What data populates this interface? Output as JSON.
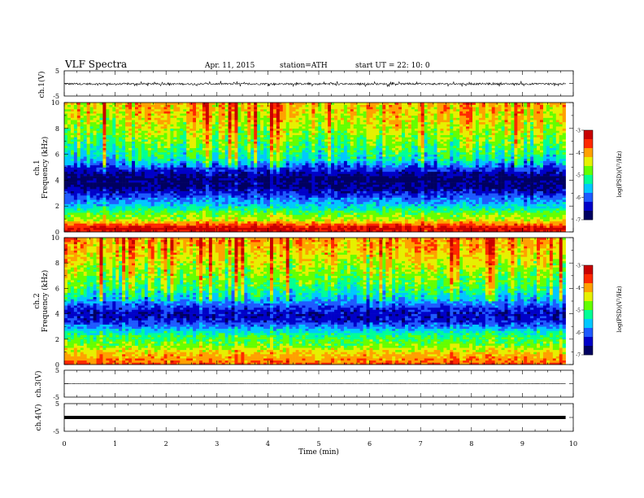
{
  "header": {
    "title": "VLF  Spectra",
    "date": "Apr. 11, 2015",
    "station": "station=ATH",
    "start": "start  UT  =   22: 10: 0"
  },
  "chart_data": [
    {
      "type": "line",
      "name": "ch1-waveform",
      "ylabel": "ch.1(V)",
      "ylim": [
        -5,
        5
      ],
      "yticks": [
        "5",
        "-5"
      ],
      "trace": {
        "baseline": -0.2,
        "noise": 0.35,
        "spikes": 0.9,
        "spike_rate": 0.12
      },
      "color": "#000000"
    },
    {
      "type": "heatmap",
      "name": "ch1-spectrogram",
      "ylabel_channel": "ch.1",
      "ylabel": "Frequency  (kHz)",
      "ylim": [
        0,
        10
      ],
      "yticks": [
        "0",
        "2",
        "4",
        "6",
        "8",
        "10"
      ],
      "colorbar": {
        "label": "log(PSD)(V²/Hz)",
        "range": [
          -7,
          -3
        ],
        "ticks": [
          "-3",
          "-4",
          "-5",
          "-6",
          "-7"
        ]
      },
      "profile": [
        {
          "f": 0.1,
          "v": -3.4
        },
        {
          "f": 0.3,
          "v": -3.2
        },
        {
          "f": 0.6,
          "v": -3.8
        },
        {
          "f": 1.0,
          "v": -4.6
        },
        {
          "f": 1.5,
          "v": -4.9
        },
        {
          "f": 2.0,
          "v": -5.5
        },
        {
          "f": 2.5,
          "v": -5.9
        },
        {
          "f": 3.0,
          "v": -6.3
        },
        {
          "f": 3.5,
          "v": -6.7
        },
        {
          "f": 4.2,
          "v": -6.8
        },
        {
          "f": 5.0,
          "v": -6.1
        },
        {
          "f": 5.6,
          "v": -5.4
        },
        {
          "f": 6.5,
          "v": -5.0
        },
        {
          "f": 7.5,
          "v": -4.7
        },
        {
          "f": 8.5,
          "v": -4.4
        },
        {
          "f": 9.5,
          "v": -4.2
        },
        {
          "f": 10.0,
          "v": -4.1
        }
      ]
    },
    {
      "type": "heatmap",
      "name": "ch2-spectrogram",
      "ylabel_channel": "ch.2",
      "ylabel": "Frequency  (kHz)",
      "ylim": [
        0,
        10
      ],
      "yticks": [
        "0",
        "2",
        "4",
        "6",
        "8",
        "10"
      ],
      "colorbar": {
        "label": "log(PSD)(V²/Hz)",
        "range": [
          -7,
          -3
        ],
        "ticks": [
          "-3",
          "-4",
          "-5",
          "-6",
          "-7"
        ]
      },
      "profile": [
        {
          "f": 0.1,
          "v": -3.8
        },
        {
          "f": 0.5,
          "v": -4.0
        },
        {
          "f": 1.0,
          "v": -4.3
        },
        {
          "f": 1.5,
          "v": -4.8
        },
        {
          "f": 2.0,
          "v": -5.0
        },
        {
          "f": 2.5,
          "v": -5.3
        },
        {
          "f": 3.0,
          "v": -5.9
        },
        {
          "f": 3.5,
          "v": -6.4
        },
        {
          "f": 4.0,
          "v": -6.5
        },
        {
          "f": 4.5,
          "v": -6.2
        },
        {
          "f": 5.2,
          "v": -5.6
        },
        {
          "f": 6.0,
          "v": -5.1
        },
        {
          "f": 7.0,
          "v": -4.8
        },
        {
          "f": 8.0,
          "v": -4.5
        },
        {
          "f": 9.0,
          "v": -4.2
        },
        {
          "f": 10.0,
          "v": -4.0
        }
      ]
    },
    {
      "type": "line",
      "name": "ch3-waveform",
      "ylabel": "ch.3(V)",
      "ylim": [
        -5,
        5
      ],
      "yticks": [
        "5",
        "-5"
      ],
      "trace": {
        "baseline": 0.0,
        "noise": 0.05,
        "spikes": 0.0,
        "spike_rate": 0.0
      },
      "color": "#000000"
    },
    {
      "type": "line",
      "name": "ch4-waveform",
      "ylabel": "ch.4(V)",
      "ylim": [
        -5,
        5
      ],
      "yticks": [
        "5",
        "-5"
      ],
      "trace": {
        "baseline": 0.0,
        "noise": 0.0,
        "spikes": 0.0,
        "spike_rate": 0.0
      },
      "color": "#000000",
      "thick": true
    }
  ],
  "x_axis": {
    "label": "Time  (min)",
    "range": [
      0,
      10
    ],
    "data_end": 9.85,
    "ticks": [
      "0",
      "1",
      "2",
      "3",
      "4",
      "5",
      "6",
      "7",
      "8",
      "9",
      "10"
    ]
  },
  "colormap": [
    "#000060",
    "#0000c8",
    "#1e5aff",
    "#00c8ff",
    "#00ff96",
    "#64ff00",
    "#e6f000",
    "#ffa000",
    "#ff2800",
    "#c80000"
  ]
}
